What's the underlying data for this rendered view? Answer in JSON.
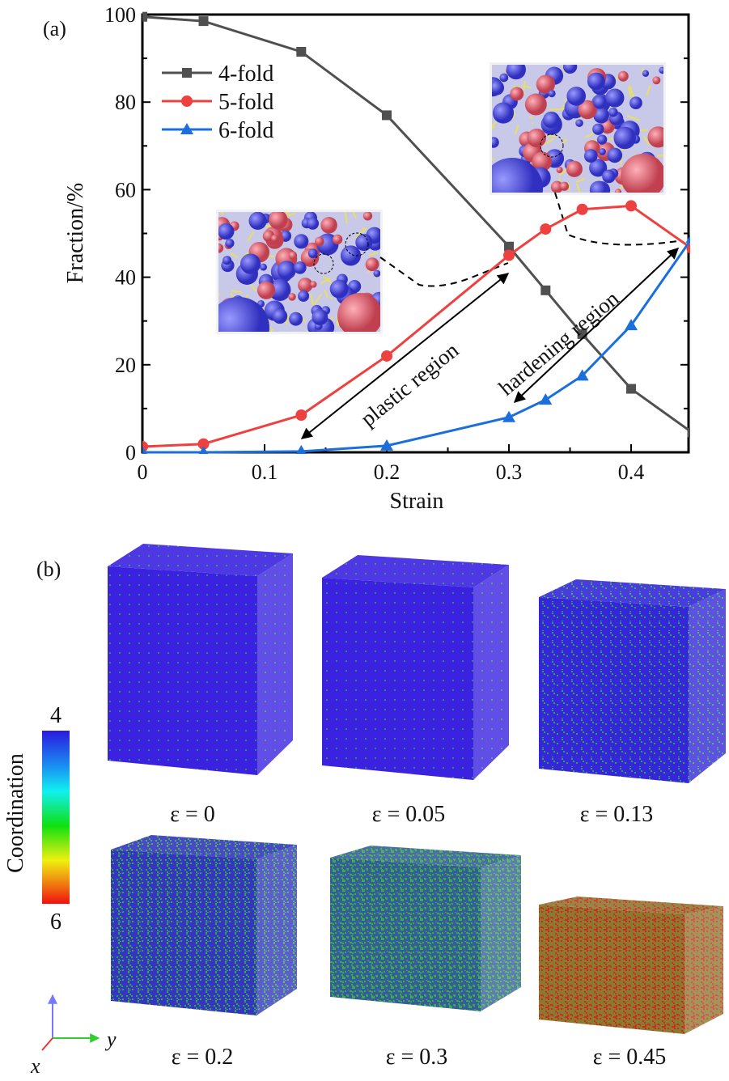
{
  "chart_data": {
    "type": "line",
    "panel_label": "(a)",
    "xlabel": "Strain",
    "ylabel": "Fraction/%",
    "xlim": [
      0,
      0.447
    ],
    "ylim": [
      0,
      100
    ],
    "xticks": [
      0,
      0.1,
      0.2,
      0.3,
      0.4
    ],
    "xtick_labels": [
      "0",
      "0.1",
      "0.2",
      "0.3",
      "0.4"
    ],
    "yticks": [
      0,
      20,
      40,
      60,
      80,
      100
    ],
    "ytick_labels": [
      "0",
      "20",
      "40",
      "60",
      "80",
      "100"
    ],
    "legend_position": "top-left",
    "x": [
      0,
      0.05,
      0.13,
      0.2,
      0.3,
      0.33,
      0.36,
      0.4,
      0.45
    ],
    "series": [
      {
        "name": "4-fold",
        "marker": "square",
        "color": "#505050",
        "values": [
          99.5,
          98.5,
          91.5,
          77,
          47,
          37,
          27,
          14.5,
          4.5
        ]
      },
      {
        "name": "5-fold",
        "marker": "circle",
        "color": "#ef4040",
        "values": [
          1.3,
          1.9,
          8.5,
          22,
          45,
          51,
          55.5,
          56.3,
          46.5
        ]
      },
      {
        "name": "6-fold",
        "marker": "triangle",
        "color": "#1a6fdc",
        "values": [
          0,
          0,
          0.2,
          1.5,
          8,
          12,
          17.5,
          29,
          49
        ]
      }
    ],
    "annotations": [
      "plastic region",
      "hardening region"
    ]
  },
  "panel_b": {
    "panel_label": "(b)",
    "colorbar": {
      "title": "Coordination",
      "min_label": "4",
      "max_label": "6",
      "colors": [
        "#2a1ae0",
        "#1a8cf0",
        "#10f0f0",
        "#10e010",
        "#f0f010",
        "#f08010",
        "#f01010"
      ]
    },
    "axes": {
      "x": "x",
      "y": "y"
    },
    "frames": [
      {
        "label": "ε = 0",
        "base": "#3a22e0",
        "speck": "#2e8a6a",
        "speck_ratio": 0.03
      },
      {
        "label": "ε = 0.05",
        "base": "#3a22e0",
        "speck": "#2e8a6a",
        "speck_ratio": 0.05
      },
      {
        "label": "ε = 0.13",
        "base": "#3526d8",
        "speck": "#2ea05a",
        "speck_ratio": 0.18
      },
      {
        "label": "ε = 0.2",
        "base": "#3535c0",
        "speck": "#2fa84a",
        "speck_ratio": 0.35
      },
      {
        "label": "ε = 0.3",
        "base": "#3a5aa0",
        "speck": "#30b040",
        "speck_ratio": 0.55
      },
      {
        "label": "ε = 0.45",
        "base": "#8a7a30",
        "speck": "#d02a20",
        "speck_ratio": 0.5
      }
    ]
  }
}
